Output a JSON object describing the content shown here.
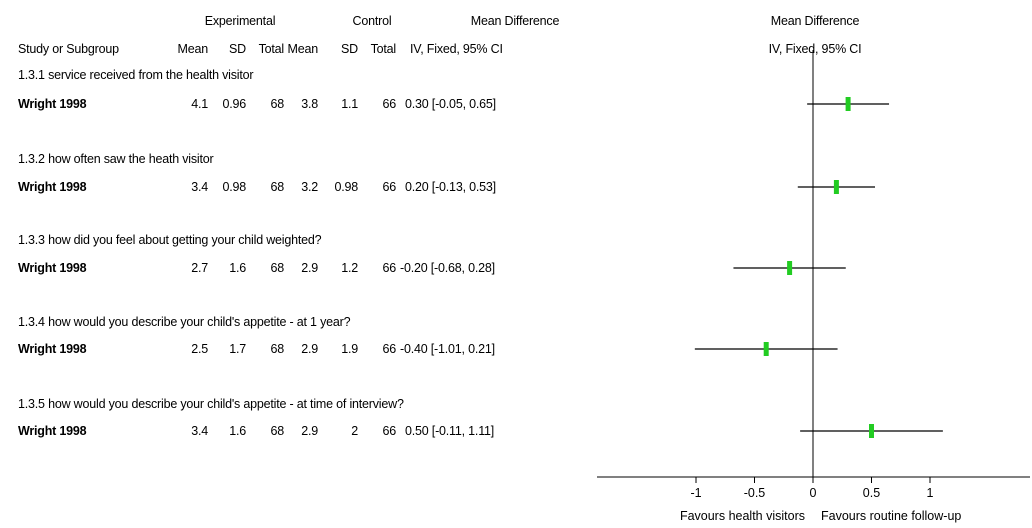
{
  "header": {
    "experimental": "Experimental",
    "control": "Control",
    "mean_difference_col": "Mean Difference",
    "mean_difference_plot": "Mean Difference",
    "study_or_subgroup": "Study or Subgroup",
    "exp_mean": "Mean",
    "exp_sd": "SD",
    "exp_total": "Total",
    "ctl_mean": "Mean",
    "ctl_sd": "SD",
    "ctl_total": "Total",
    "method_col": "IV, Fixed, 95% CI",
    "method_plot": "IV, Fixed, 95% CI"
  },
  "subgroups": [
    {
      "title": "1.3.1 service received from the health visitor",
      "study": "Wright 1998",
      "exp_mean": "4.1",
      "exp_sd": "0.96",
      "exp_total": "68",
      "ctl_mean": "3.8",
      "ctl_sd": "1.1",
      "ctl_total": "66",
      "md_text": "0.30 [-0.05, 0.65]"
    },
    {
      "title": "1.3.2 how often saw the heath visitor",
      "study": "Wright 1998",
      "exp_mean": "3.4",
      "exp_sd": "0.98",
      "exp_total": "68",
      "ctl_mean": "3.2",
      "ctl_sd": "0.98",
      "ctl_total": "66",
      "md_text": "0.20 [-0.13, 0.53]"
    },
    {
      "title": "1.3.3 how did you feel about getting your child weighted?",
      "study": "Wright 1998",
      "exp_mean": "2.7",
      "exp_sd": "1.6",
      "exp_total": "68",
      "ctl_mean": "2.9",
      "ctl_sd": "1.2",
      "ctl_total": "66",
      "md_text": "-0.20 [-0.68, 0.28]"
    },
    {
      "title": "1.3.4 how would you describe your child's appetite - at 1 year?",
      "study": "Wright 1998",
      "exp_mean": "2.5",
      "exp_sd": "1.7",
      "exp_total": "68",
      "ctl_mean": "2.9",
      "ctl_sd": "1.9",
      "ctl_total": "66",
      "md_text": "-0.40 [-1.01, 0.21]"
    },
    {
      "title": "1.3.5 how would you describe your child's appetite - at time of interview?",
      "study": "Wright 1998",
      "exp_mean": "3.4",
      "exp_sd": "1.6",
      "exp_total": "68",
      "ctl_mean": "2.9",
      "ctl_sd": "2",
      "ctl_total": "66",
      "md_text": "0.50 [-0.11, 1.11]"
    }
  ],
  "chart_data": {
    "type": "scatter",
    "subtype": "forest",
    "xlim": [
      -1.2,
      1.2
    ],
    "xticks": [
      -1,
      -0.5,
      0,
      0.5,
      1
    ],
    "xtick_labels": [
      "-1",
      "-0.5",
      "0",
      "0.5",
      "1"
    ],
    "favours_left": "Favours health visitors",
    "favours_right": "Favours routine follow-up",
    "point_color": "#22cc22",
    "ci_color": "#000000",
    "rows": [
      {
        "study": "Wright 1998",
        "md": 0.3,
        "ci": [
          -0.05,
          0.65
        ]
      },
      {
        "study": "Wright 1998",
        "md": 0.2,
        "ci": [
          -0.13,
          0.53
        ]
      },
      {
        "study": "Wright 1998",
        "md": -0.2,
        "ci": [
          -0.68,
          0.28
        ]
      },
      {
        "study": "Wright 1998",
        "md": -0.4,
        "ci": [
          -1.01,
          0.21
        ]
      },
      {
        "study": "Wright 1998",
        "md": 0.5,
        "ci": [
          -0.11,
          1.11
        ]
      }
    ]
  }
}
